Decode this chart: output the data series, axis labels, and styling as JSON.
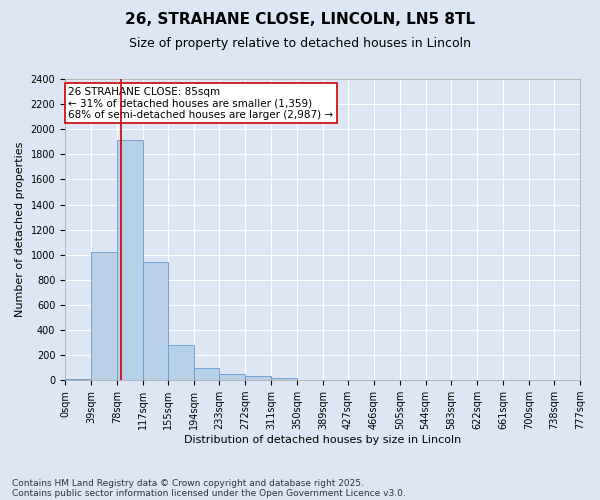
{
  "title_line1": "26, STRAHANE CLOSE, LINCOLN, LN5 8TL",
  "title_line2": "Size of property relative to detached houses in Lincoln",
  "xlabel": "Distribution of detached houses by size in Lincoln",
  "ylabel": "Number of detached properties",
  "bar_color": "#b8cfe8",
  "bar_edge_color": "#6699cc",
  "background_color": "#dce6f5",
  "grid_color": "#ffffff",
  "annotation_box_color": "#cc0000",
  "vline_color": "#cc0000",
  "vline_x": 85,
  "bin_edges": [
    0,
    39,
    78,
    117,
    155,
    194,
    233,
    272,
    311,
    350,
    389,
    427,
    466,
    505,
    544,
    583,
    622,
    661,
    700,
    738,
    777
  ],
  "bar_heights": [
    10,
    1020,
    1910,
    940,
    280,
    100,
    50,
    30,
    20,
    5,
    3,
    2,
    1,
    1,
    0,
    0,
    0,
    0,
    0,
    0
  ],
  "ylim": [
    0,
    2400
  ],
  "yticks": [
    0,
    200,
    400,
    600,
    800,
    1000,
    1200,
    1400,
    1600,
    1800,
    2000,
    2200,
    2400
  ],
  "annotation_text": "26 STRAHANE CLOSE: 85sqm\n← 31% of detached houses are smaller (1,359)\n68% of semi-detached houses are larger (2,987) →",
  "footer_line1": "Contains HM Land Registry data © Crown copyright and database right 2025.",
  "footer_line2": "Contains public sector information licensed under the Open Government Licence v3.0.",
  "title_fontsize": 11,
  "subtitle_fontsize": 9,
  "annotation_fontsize": 7.5,
  "footer_fontsize": 6.5,
  "xlabel_fontsize": 8,
  "ylabel_fontsize": 8,
  "tick_fontsize": 7
}
